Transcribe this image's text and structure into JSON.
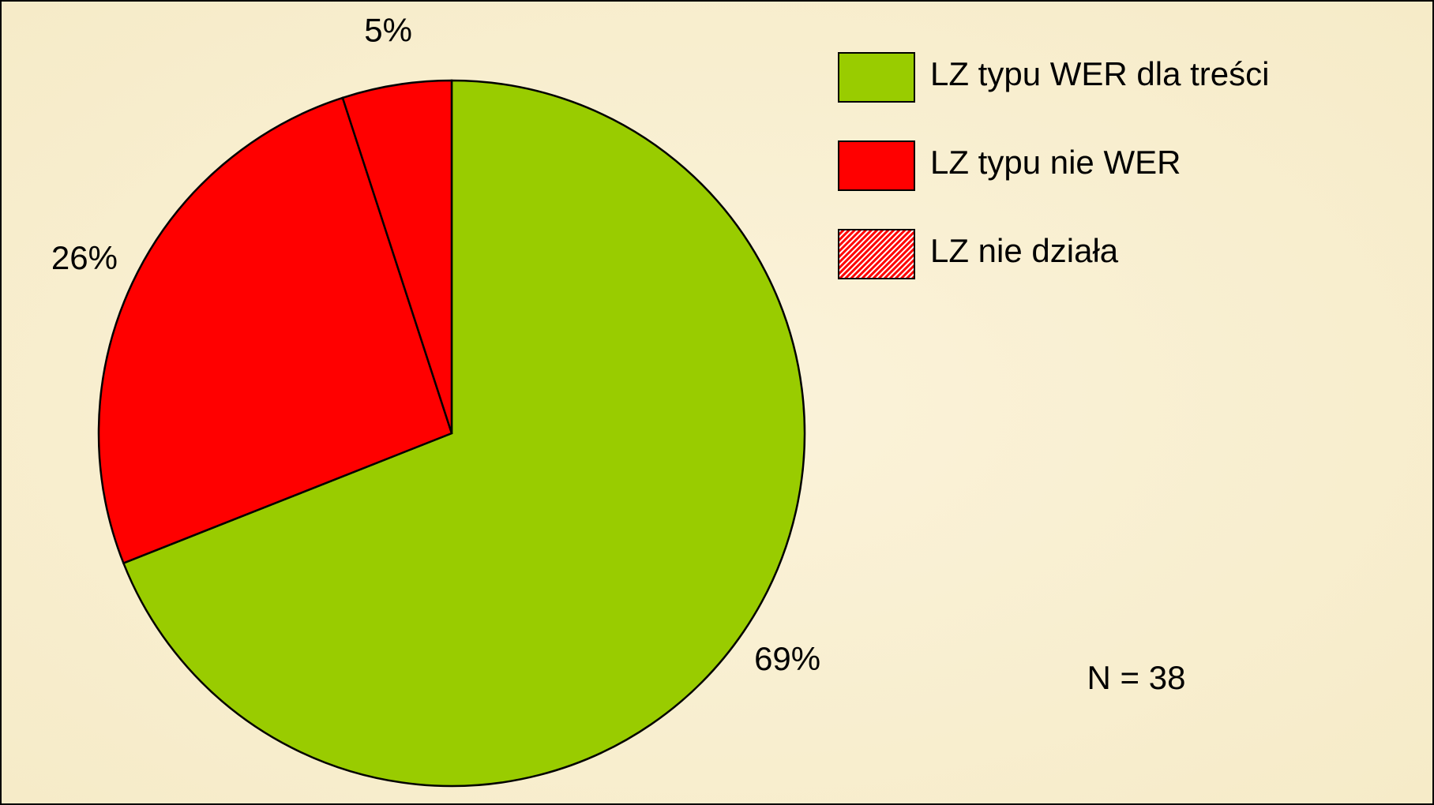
{
  "chart_data": {
    "type": "pie",
    "categories": [
      "LZ typu WER dla treści",
      "LZ typu nie WER",
      "LZ nie działa"
    ],
    "values": [
      69,
      26,
      5
    ],
    "value_labels": [
      "69%",
      "26%",
      "5%"
    ],
    "colors": [
      "#99cc00",
      "#ff0000",
      "#ff0000"
    ],
    "hatched": [
      false,
      false,
      true
    ],
    "start_angle": 0,
    "direction": "clockwise",
    "legend": "right",
    "annotation": "N = 38"
  }
}
